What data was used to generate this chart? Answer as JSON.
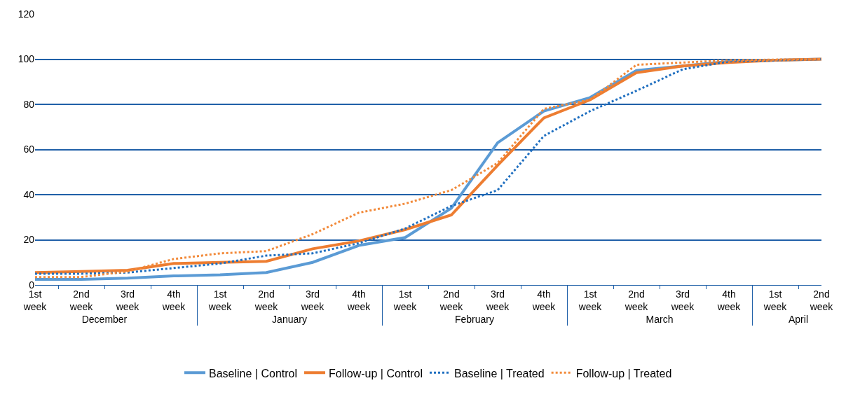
{
  "chart_data": {
    "type": "line",
    "categories": [
      "1st week",
      "2nd week",
      "3rd week",
      "4th week",
      "1st week",
      "2nd week",
      "3rd week",
      "4th week",
      "1st week",
      "2nd week",
      "3rd week",
      "4th week",
      "1st week",
      "2nd week",
      "3rd week",
      "4th week",
      "1st week",
      "2nd week"
    ],
    "annotations": [
      "December",
      "January",
      "February",
      "March",
      "April"
    ],
    "series": [
      {
        "name": "Baseline | Control",
        "color": "#5b9bd5",
        "line_style": "solid",
        "values": [
          2.5,
          2.5,
          3,
          4,
          4.5,
          5.5,
          10,
          17.5,
          21,
          34,
          63,
          77,
          83,
          95,
          97,
          99,
          99.5,
          100
        ]
      },
      {
        "name": "Follow-up | Control",
        "color": "#ed7d31",
        "line_style": "solid",
        "values": [
          5.5,
          6,
          6.5,
          9.5,
          10,
          10.5,
          16,
          19.5,
          24.5,
          31,
          53,
          74,
          82,
          94,
          97,
          98.5,
          99.5,
          100
        ]
      },
      {
        "name": "Baseline | Treated",
        "color": "#1f6fc0",
        "line_style": "dotted",
        "values": [
          5,
          5,
          5.5,
          7.5,
          9.5,
          13,
          14,
          18.5,
          25,
          35,
          42,
          66,
          77,
          86,
          95.5,
          99,
          99.5,
          100
        ]
      },
      {
        "name": "Follow-up | Treated",
        "color": "#f28a3a",
        "line_style": "dotted",
        "values": [
          3.5,
          3.5,
          6,
          11.5,
          14,
          15,
          22.5,
          32,
          36,
          42,
          54,
          78,
          82,
          97.5,
          98.5,
          99.5,
          99.8,
          100
        ]
      }
    ],
    "ylim": [
      0,
      120
    ],
    "yticks": [
      0,
      20,
      40,
      60,
      80,
      100,
      120
    ],
    "grid": "y",
    "legend": "bottom",
    "marker": "none"
  }
}
